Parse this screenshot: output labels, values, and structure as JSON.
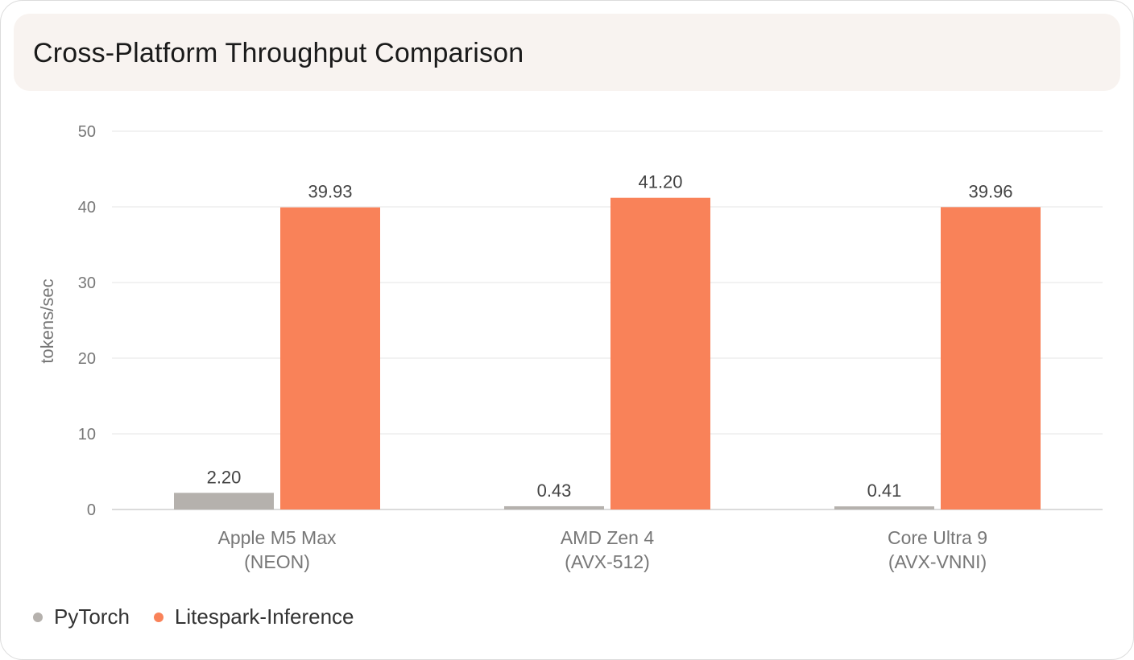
{
  "title": "Cross-Platform Throughput Comparison",
  "chart_data": {
    "type": "bar",
    "ylabel": "tokens/sec",
    "ylim": [
      0,
      50
    ],
    "yticks": [
      0,
      10,
      20,
      30,
      40,
      50
    ],
    "grid": true,
    "legend_position": "bottom-left",
    "categories": [
      [
        "Apple M5 Max",
        "(NEON)"
      ],
      [
        "AMD Zen 4",
        "(AVX-512)"
      ],
      [
        "Core Ultra 9",
        "(AVX-VNNI)"
      ]
    ],
    "series": [
      {
        "name": "PyTorch",
        "color": "#b5b1ad",
        "values": [
          2.2,
          0.43,
          0.41
        ],
        "labels": [
          "2.20",
          "0.43",
          "0.41"
        ]
      },
      {
        "name": "Litespark-Inference",
        "color": "#f98259",
        "values": [
          39.93,
          41.2,
          39.96
        ],
        "labels": [
          "39.93",
          "41.20",
          "39.96"
        ]
      }
    ]
  }
}
